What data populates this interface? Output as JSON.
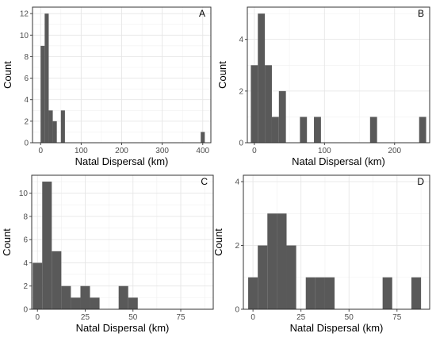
{
  "chart_data": [
    {
      "type": "bar",
      "panel_label": "A",
      "xlabel": "Natal Dispersal (km)",
      "ylabel": "Count",
      "xlim": [
        -20,
        420
      ],
      "ylim": [
        0,
        12.6
      ],
      "xticks": [
        0,
        100,
        200,
        300,
        400
      ],
      "yticks": [
        0,
        2,
        4,
        6,
        8,
        10,
        12
      ],
      "bin_width": 10,
      "bins": [
        {
          "x0": 0,
          "x1": 10,
          "count": 9
        },
        {
          "x0": 10,
          "x1": 20,
          "count": 12
        },
        {
          "x0": 20,
          "x1": 30,
          "count": 3
        },
        {
          "x0": 30,
          "x1": 40,
          "count": 2
        },
        {
          "x0": 40,
          "x1": 50,
          "count": 0
        },
        {
          "x0": 50,
          "x1": 60,
          "count": 3
        },
        {
          "x0": 395,
          "x1": 405,
          "count": 1
        }
      ],
      "grid": true,
      "color": "#595959"
    },
    {
      "type": "bar",
      "panel_label": "B",
      "xlabel": "Natal Dispersal (km)",
      "ylabel": "Count",
      "xlim": [
        -10,
        250
      ],
      "ylim": [
        0,
        5.25
      ],
      "xticks": [
        0,
        100,
        200
      ],
      "yticks": [
        0,
        2,
        4
      ],
      "bin_width": 10,
      "bins": [
        {
          "x0": -5,
          "x1": 5,
          "count": 3
        },
        {
          "x0": 5,
          "x1": 15,
          "count": 5
        },
        {
          "x0": 15,
          "x1": 25,
          "count": 3
        },
        {
          "x0": 25,
          "x1": 35,
          "count": 1
        },
        {
          "x0": 35,
          "x1": 45,
          "count": 2
        },
        {
          "x0": 65,
          "x1": 75,
          "count": 1
        },
        {
          "x0": 85,
          "x1": 95,
          "count": 1
        },
        {
          "x0": 165,
          "x1": 175,
          "count": 1
        },
        {
          "x0": 235,
          "x1": 245,
          "count": 1
        }
      ],
      "grid": true,
      "color": "#595959"
    },
    {
      "type": "bar",
      "panel_label": "C",
      "xlabel": "Natal Dispersal (km)",
      "ylabel": "Count",
      "xlim": [
        -3,
        92
      ],
      "ylim": [
        0,
        11.55
      ],
      "xticks": [
        0,
        25,
        50,
        75
      ],
      "yticks": [
        0,
        2,
        4,
        6,
        8,
        10
      ],
      "bin_width": 5,
      "bins": [
        {
          "x0": -2.5,
          "x1": 2.5,
          "count": 4
        },
        {
          "x0": 2.5,
          "x1": 7.5,
          "count": 11
        },
        {
          "x0": 7.5,
          "x1": 12.5,
          "count": 5
        },
        {
          "x0": 12.5,
          "x1": 17.5,
          "count": 2
        },
        {
          "x0": 17.5,
          "x1": 22.5,
          "count": 1
        },
        {
          "x0": 22.5,
          "x1": 27.5,
          "count": 2
        },
        {
          "x0": 27.5,
          "x1": 32.5,
          "count": 1
        },
        {
          "x0": 42.5,
          "x1": 47.5,
          "count": 2
        },
        {
          "x0": 47.5,
          "x1": 52.5,
          "count": 1
        }
      ],
      "grid": true,
      "color": "#595959"
    },
    {
      "type": "bar",
      "panel_label": "D",
      "xlabel": "Natal Dispersal (km)",
      "ylabel": "Count",
      "xlim": [
        -5,
        92
      ],
      "ylim": [
        0,
        4.2
      ],
      "xticks": [
        0,
        25,
        50,
        75
      ],
      "yticks": [
        0,
        2,
        4
      ],
      "bin_width": 5,
      "bins": [
        {
          "x0": -2.5,
          "x1": 2.5,
          "count": 1
        },
        {
          "x0": 2.5,
          "x1": 7.5,
          "count": 2
        },
        {
          "x0": 7.5,
          "x1": 12.5,
          "count": 3
        },
        {
          "x0": 12.5,
          "x1": 17.5,
          "count": 3
        },
        {
          "x0": 17.5,
          "x1": 22.5,
          "count": 2
        },
        {
          "x0": 27.5,
          "x1": 32.5,
          "count": 1
        },
        {
          "x0": 32.5,
          "x1": 37.5,
          "count": 1
        },
        {
          "x0": 37.5,
          "x1": 42.5,
          "count": 1
        },
        {
          "x0": 67.5,
          "x1": 72.5,
          "count": 1
        },
        {
          "x0": 82.5,
          "x1": 87.5,
          "count": 1
        }
      ],
      "grid": true,
      "color": "#595959"
    }
  ]
}
